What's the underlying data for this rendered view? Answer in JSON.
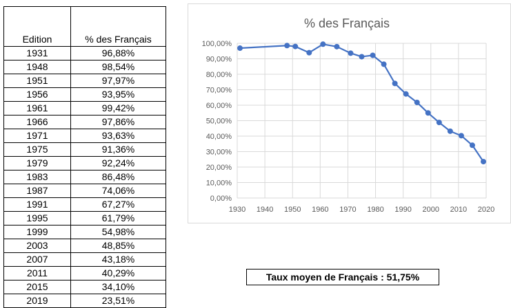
{
  "table": {
    "headers": [
      "Edition",
      "% des Français"
    ],
    "rows": [
      [
        "1931",
        "96,88%"
      ],
      [
        "1948",
        "98,54%"
      ],
      [
        "1951",
        "97,97%"
      ],
      [
        "1956",
        "93,95%"
      ],
      [
        "1961",
        "99,42%"
      ],
      [
        "1966",
        "97,86%"
      ],
      [
        "1971",
        "93,63%"
      ],
      [
        "1975",
        "91,36%"
      ],
      [
        "1979",
        "92,24%"
      ],
      [
        "1983",
        "86,48%"
      ],
      [
        "1987",
        "74,06%"
      ],
      [
        "1991",
        "67,27%"
      ],
      [
        "1995",
        "61,79%"
      ],
      [
        "1999",
        "54,98%"
      ],
      [
        "2003",
        "48,85%"
      ],
      [
        "2007",
        "43,18%"
      ],
      [
        "2011",
        "40,29%"
      ],
      [
        "2015",
        "34,10%"
      ],
      [
        "2019",
        "23,51%"
      ]
    ]
  },
  "summary": {
    "label": "Taux moyen de Français : 51,75%"
  },
  "chart_data": {
    "type": "line",
    "title": "% des Français",
    "xlabel": "",
    "ylabel": "",
    "x": [
      1931,
      1948,
      1951,
      1956,
      1961,
      1966,
      1971,
      1975,
      1979,
      1983,
      1987,
      1991,
      1995,
      1999,
      2003,
      2007,
      2011,
      2015,
      2019
    ],
    "series": [
      {
        "values": [
          96.88,
          98.54,
          97.97,
          93.95,
          99.42,
          97.86,
          93.63,
          91.36,
          92.24,
          86.48,
          74.06,
          67.27,
          61.79,
          54.98,
          48.85,
          43.18,
          40.29,
          34.1,
          23.51
        ],
        "color": "#4472c4"
      }
    ],
    "xlim": [
      1930,
      2020
    ],
    "ylim": [
      0,
      100
    ],
    "x_ticks": [
      "1930",
      "1940",
      "1950",
      "1960",
      "1970",
      "1980",
      "1990",
      "2000",
      "2010",
      "2020"
    ],
    "y_ticks": [
      "0,00%",
      "10,00%",
      "20,00%",
      "30,00%",
      "40,00%",
      "50,00%",
      "60,00%",
      "70,00%",
      "80,00%",
      "90,00%",
      "100,00%"
    ],
    "grid": true,
    "legend": "none",
    "gridline_color": "#d9d9d9",
    "axis_text_color": "#595959"
  }
}
